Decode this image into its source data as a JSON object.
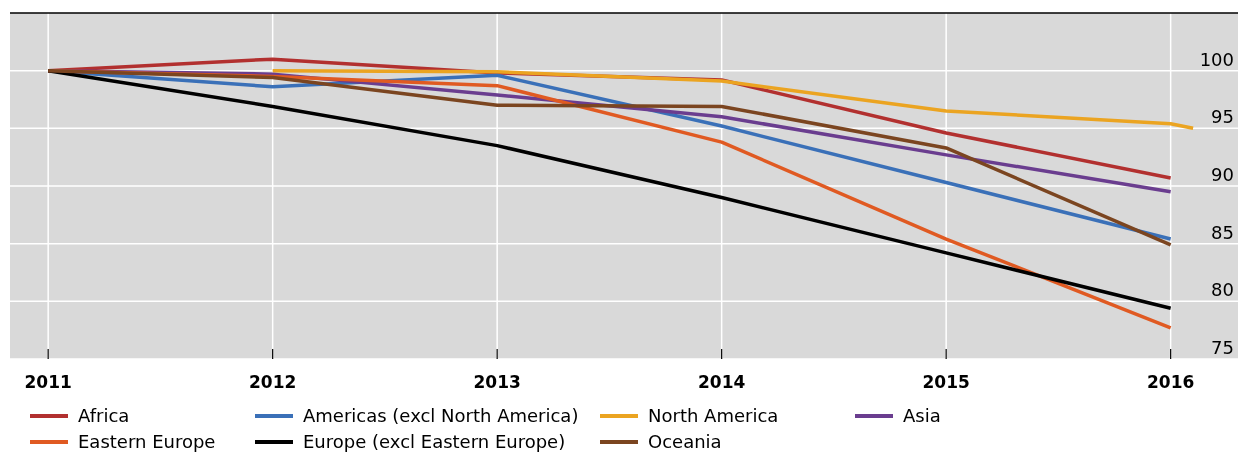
{
  "chart_data": {
    "type": "line",
    "x": [
      2011,
      2012,
      2013,
      2014,
      2015,
      2016
    ],
    "series": [
      {
        "name": "Africa",
        "color": "#b2302f",
        "values": [
          100,
          101,
          99.8,
          99.2,
          94.6,
          90.7
        ]
      },
      {
        "name": "Americas (excl North America)",
        "color": "#3a70b8",
        "values": [
          100,
          98.6,
          99.6,
          95.2,
          90.3,
          85.4
        ]
      },
      {
        "name": "North America",
        "color": "#eba421",
        "x": [
          2012,
          2013,
          2014,
          2015,
          2016,
          2016.1
        ],
        "values": [
          100,
          99.9,
          99.1,
          96.5,
          95.4,
          95
        ]
      },
      {
        "name": "Asia",
        "color": "#6a3d8f",
        "values": [
          100,
          99.7,
          97.9,
          96,
          92.7,
          89.5
        ]
      },
      {
        "name": "Eastern Europe",
        "color": "#e05a22",
        "values": [
          100,
          99.5,
          98.7,
          93.8,
          85.4,
          77.7
        ]
      },
      {
        "name": "Europe (excl Eastern Europe)",
        "color": "#000000",
        "values": [
          100,
          96.9,
          93.5,
          89,
          84.2,
          79.4
        ]
      },
      {
        "name": "Oceania",
        "color": "#7b4520",
        "values": [
          100,
          99.4,
          97,
          96.9,
          93.3,
          84.9
        ]
      }
    ],
    "xlim": [
      2010.83,
      2016.3
    ],
    "xticks": [
      2011,
      2012,
      2013,
      2014,
      2015,
      2016
    ],
    "ylim": [
      75,
      105
    ],
    "yticks": [
      75,
      80,
      85,
      90,
      95,
      100
    ],
    "grid": true,
    "legend": "bottom",
    "marker": "none",
    "line_style": "solid"
  }
}
